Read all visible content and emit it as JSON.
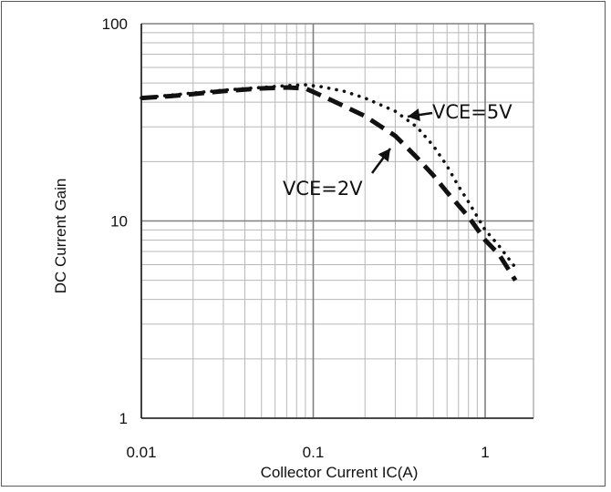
{
  "chart_data": {
    "type": "line",
    "title": "",
    "xlabel": "Collector Current IC(A)",
    "ylabel": "DC Current Gain",
    "x_scale": "log",
    "y_scale": "log",
    "xlim": [
      0.01,
      1.8
    ],
    "ylim": [
      1,
      100
    ],
    "x_tick_labels": [
      "0.01",
      "0.1",
      "1"
    ],
    "y_tick_labels": [
      "1",
      "10",
      "100"
    ],
    "grid": true,
    "series": [
      {
        "name": "VCE=5V",
        "style": "dotted",
        "x": [
          0.01,
          0.015,
          0.02,
          0.03,
          0.05,
          0.07,
          0.09,
          0.11,
          0.15,
          0.2,
          0.3,
          0.4,
          0.5,
          0.6,
          0.7,
          0.8,
          0.9,
          1.0,
          1.2,
          1.5
        ],
        "y": [
          42,
          43.5,
          44.5,
          46,
          47.5,
          48.5,
          49,
          48,
          45.5,
          42,
          36,
          30,
          24,
          19,
          15,
          12.5,
          10.5,
          9,
          7.5,
          5.8
        ]
      },
      {
        "name": "VCE=2V",
        "style": "dashed",
        "x": [
          0.01,
          0.015,
          0.02,
          0.03,
          0.05,
          0.07,
          0.09,
          0.12,
          0.2,
          0.3,
          0.4,
          0.5,
          0.6,
          0.7,
          0.8,
          1.0,
          1.2,
          1.5
        ],
        "y": [
          42,
          43,
          44,
          45.5,
          47,
          47.5,
          47,
          42,
          34,
          27,
          21,
          17,
          14,
          12,
          10.5,
          8,
          6.8,
          5
        ]
      }
    ],
    "annotations": [
      {
        "text": "VCE=5V",
        "points_to": "VCE=5V"
      },
      {
        "text": "VCE=2V",
        "points_to": "VCE=2V"
      }
    ]
  }
}
